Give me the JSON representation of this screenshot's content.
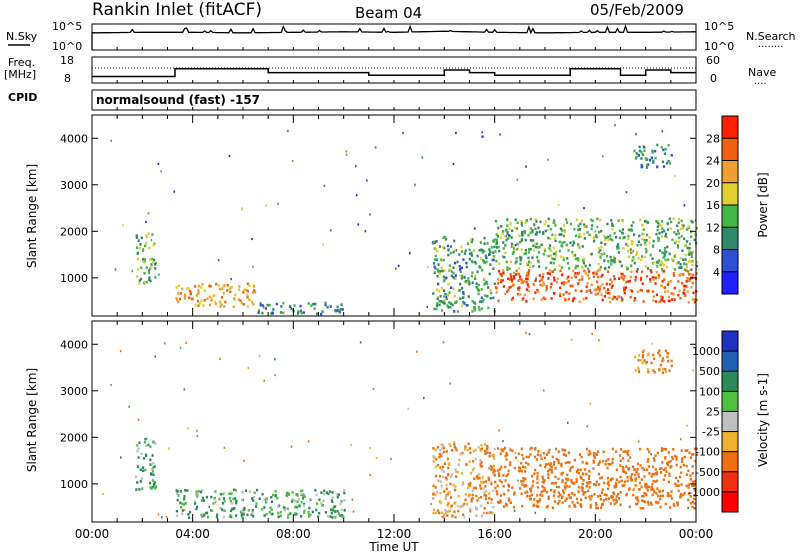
{
  "header": {
    "station": "Rankin Inlet (fitACF)",
    "beam": "Beam 04",
    "date": "05/Feb/2009"
  },
  "noise_panel": {
    "left_label": "N.Sky",
    "right_label": "N.Search",
    "tick_top_left": "10^5",
    "tick_bottom_left": "10^0",
    "tick_top_right": "10^5",
    "tick_bottom_right": "10^0",
    "dotted_label": "........"
  },
  "freq_panel": {
    "left_label_1": "Freq.",
    "left_label_2": "[MHz]",
    "right_label": "Nave",
    "tick_left_top": "18",
    "tick_left_bottom": "8",
    "tick_right_top": "60",
    "tick_right_bottom": "0",
    "dotted_label": "....",
    "cpid_label": "CPID"
  },
  "cpid_panel": {
    "text": "normalsound (fast) -157"
  },
  "power_panel": {
    "ylabel": "Slant Range [km]",
    "yticks": [
      "1000",
      "2000",
      "3000",
      "4000"
    ],
    "colorbar_label": "Power [dB]",
    "colorbar_ticks": [
      "4",
      "8",
      "12",
      "16",
      "20",
      "24",
      "28"
    ],
    "colorbar_colors": [
      "#1f1fff",
      "#2e4fd0",
      "#2f8a6a",
      "#45b545",
      "#dfd030",
      "#f0a030",
      "#f06010",
      "#ff2000"
    ]
  },
  "velocity_panel": {
    "ylabel": "Slant Range [km]",
    "yticks": [
      "1000",
      "2000",
      "3000",
      "4000"
    ],
    "colorbar_label": "Velocity [m s-1]",
    "colorbar_ticks": [
      "1000",
      "500",
      "100",
      "25",
      "-25",
      "-100",
      "-500",
      "-1000"
    ],
    "colorbar_colors": [
      "#2030c0",
      "#2060b0",
      "#2a8a5a",
      "#50c040",
      "#c0c0c0",
      "#f0b030",
      "#f07010",
      "#f03010",
      "#ff0000"
    ]
  },
  "xaxis": {
    "ticks": [
      "00:00",
      "04:00",
      "08:00",
      "12:00",
      "16:00",
      "20:00",
      "00:00"
    ],
    "label": "Time UT"
  },
  "chart_data": [
    {
      "type": "line",
      "title": "N.Sky / N.Search",
      "x": [
        0,
        2,
        4,
        6,
        8,
        10,
        12,
        14,
        16,
        18,
        20,
        22,
        24
      ],
      "series": [
        {
          "name": "N.Sky",
          "values": [
            3.3,
            3.4,
            3.4,
            3.3,
            3.4,
            3.5,
            3.4,
            3.6,
            3.4,
            3.3,
            3.4,
            3.4,
            3.5
          ]
        }
      ]
    },
    {
      "type": "line",
      "title": "Freq.",
      "x": [
        0,
        2,
        3.3,
        5,
        7,
        9,
        11,
        13,
        14,
        15,
        16,
        18,
        19,
        21,
        22,
        23,
        24
      ],
      "series": [
        {
          "name": "Freq.",
          "values": [
            10.5,
            10.5,
            13.5,
            13.5,
            12,
            12,
            11,
            11,
            13,
            12,
            11,
            11,
            13.5,
            11,
            13,
            12,
            12
          ]
        }
      ]
    },
    {
      "type": "heatmap",
      "title": "Power [dB]",
      "xlabel": "Time UT",
      "ylabel": "Slant Range [km]",
      "xlim": [
        0,
        24
      ],
      "ylim": [
        180,
        4500
      ],
      "zlim": [
        0,
        30
      ],
      "regions": [
        {
          "t0": 1.7,
          "t1": 2.5,
          "r0": 900,
          "r1": 2000,
          "value": 14
        },
        {
          "t0": 3.3,
          "t1": 6.5,
          "r0": 400,
          "r1": 900,
          "value": 22
        },
        {
          "t0": 6.5,
          "t1": 10,
          "r0": 250,
          "r1": 500,
          "value": 10
        },
        {
          "t0": 13.5,
          "t1": 16,
          "r0": 300,
          "r1": 1900,
          "value": 12
        },
        {
          "t0": 16,
          "t1": 24,
          "r0": 500,
          "r1": 1200,
          "value": 26
        },
        {
          "t0": 16,
          "t1": 24,
          "r0": 1200,
          "r1": 2300,
          "value": 14
        },
        {
          "t0": 21.5,
          "t1": 23,
          "r0": 3400,
          "r1": 3900,
          "value": 10
        }
      ]
    },
    {
      "type": "heatmap",
      "title": "Velocity [m s-1]",
      "xlabel": "Time UT",
      "ylabel": "Slant Range [km]",
      "xlim": [
        0,
        24
      ],
      "ylim": [
        180,
        4500
      ],
      "zlim": [
        -1000,
        1000
      ],
      "regions": [
        {
          "t0": 1.7,
          "t1": 2.5,
          "r0": 900,
          "r1": 2000,
          "value": 100
        },
        {
          "t0": 3.3,
          "t1": 10,
          "r0": 300,
          "r1": 900,
          "value": 100
        },
        {
          "t0": 13.5,
          "t1": 16,
          "r0": 300,
          "r1": 1900,
          "value": -100
        },
        {
          "t0": 16,
          "t1": 24,
          "r0": 500,
          "r1": 1800,
          "value": -300
        },
        {
          "t0": 21.5,
          "t1": 23,
          "r0": 3400,
          "r1": 3900,
          "value": -150
        }
      ]
    }
  ]
}
